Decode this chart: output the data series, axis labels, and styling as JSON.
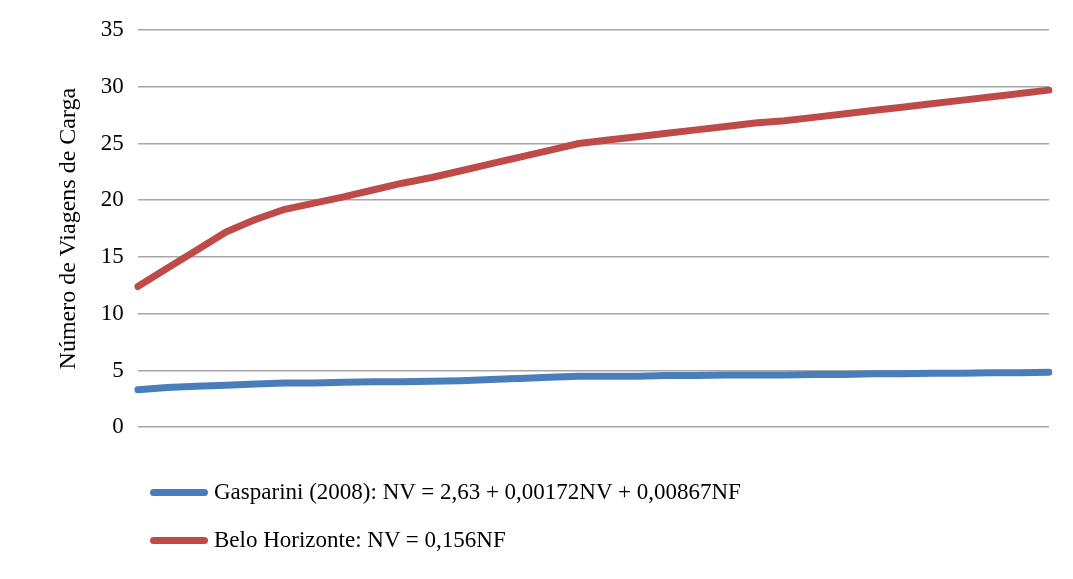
{
  "chart_data": {
    "type": "line",
    "ylabel": "Número de Viagens de Carga",
    "categories": [
      null,
      null,
      null,
      null,
      null,
      null,
      null,
      null,
      null,
      null,
      null,
      null,
      null,
      null,
      null,
      null,
      null,
      null,
      null,
      null,
      null,
      null,
      null,
      null,
      null,
      null,
      null,
      null,
      null,
      null,
      null,
      null
    ],
    "series": [
      {
        "name": "Gasparini (2008): NV = 2,63 + 0,00172NV + 0,00867NF",
        "color": "#4a7ebb",
        "values": [
          3.3,
          3.5,
          3.6,
          3.7,
          3.8,
          3.9,
          3.9,
          3.95,
          4.0,
          4.0,
          4.05,
          4.1,
          4.2,
          4.3,
          4.4,
          4.5,
          4.5,
          4.5,
          4.55,
          4.55,
          4.6,
          4.6,
          4.6,
          4.65,
          4.65,
          4.7,
          4.7,
          4.75,
          4.75,
          4.8,
          4.8,
          4.85
        ]
      },
      {
        "name": "Belo Horizonte: NV = 0,156NF",
        "color": "#be4b48",
        "values": [
          12.4,
          14.0,
          15.6,
          17.2,
          18.3,
          19.2,
          19.75,
          20.3,
          20.9,
          21.5,
          22.0,
          22.6,
          23.2,
          23.8,
          24.4,
          25.0,
          25.3,
          25.6,
          25.9,
          26.2,
          26.5,
          26.8,
          27.0,
          27.3,
          27.6,
          27.9,
          28.2,
          28.5,
          28.8,
          29.1,
          29.4,
          29.7
        ]
      }
    ],
    "ylim": [
      0,
      35
    ],
    "yticks": [
      0,
      5,
      10,
      15,
      20,
      25,
      30,
      35
    ],
    "grid": "y",
    "legend": "bottom",
    "marker": "none",
    "line_style": "solid"
  }
}
